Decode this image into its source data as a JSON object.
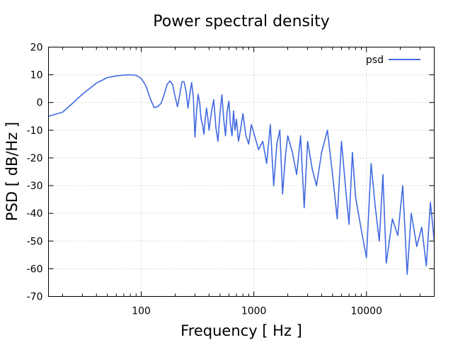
{
  "chart_data": {
    "type": "line",
    "title": "Power spectral density",
    "xlabel": "Frequency [ Hz ]",
    "ylabel": "PSD [ dB/Hz ]",
    "xscale": "log",
    "xlim": [
      15,
      40000
    ],
    "ylim": [
      -70,
      20
    ],
    "x_ticks": [
      100,
      1000,
      10000
    ],
    "x_tick_labels": [
      "100",
      "1000",
      "10000"
    ],
    "y_ticks": [
      -70,
      -60,
      -50,
      -40,
      -30,
      -20,
      -10,
      0,
      10,
      20
    ],
    "y_tick_labels": [
      "-70",
      "-60",
      "-50",
      "-40",
      "-30",
      "-20",
      "-10",
      "0",
      "10",
      "20"
    ],
    "grid": true,
    "legend_position": "top-right",
    "series": [
      {
        "name": "psd",
        "color": "#4169e1",
        "x": [
          15,
          20,
          25,
          30,
          40,
          50,
          60,
          70,
          80,
          90,
          100,
          110,
          120,
          130,
          140,
          150,
          160,
          170,
          180,
          190,
          200,
          210,
          220,
          230,
          240,
          250,
          260,
          270,
          280,
          290,
          300,
          310,
          320,
          330,
          340,
          350,
          360,
          370,
          380,
          390,
          400,
          420,
          440,
          460,
          480,
          500,
          520,
          540,
          560,
          580,
          600,
          620,
          640,
          660,
          680,
          700,
          730,
          760,
          800,
          850,
          900,
          950,
          1000,
          1100,
          1200,
          1300,
          1400,
          1500,
          1600,
          1700,
          1800,
          1900,
          2000,
          2200,
          2400,
          2600,
          2800,
          3000,
          3300,
          3600,
          4000,
          4500,
          5000,
          5500,
          6000,
          6500,
          7000,
          7500,
          8000,
          9000,
          10000,
          11000,
          12000,
          13000,
          14000,
          15000,
          17000,
          19000,
          21000,
          23000,
          25000,
          28000,
          31000,
          34000,
          37000,
          40000
        ],
        "values": [
          -5,
          -3.5,
          0,
          3,
          7,
          9,
          9.6,
          9.9,
          10,
          9.8,
          8.7,
          6,
          1.5,
          -1.8,
          -1.5,
          -0.3,
          3,
          6.6,
          7.8,
          6.5,
          2,
          -1.5,
          3,
          7.5,
          7.5,
          4,
          -2,
          3,
          7.2,
          2,
          -12.5,
          -3,
          3,
          0,
          -6,
          -8,
          -11.5,
          -6,
          -2,
          -5.5,
          -10,
          -3.5,
          1,
          -9,
          -14,
          -4,
          2.8,
          -6,
          -12,
          -3,
          0.5,
          -8,
          -12,
          -3,
          -10,
          -6,
          -14,
          -10,
          -4,
          -12,
          -15,
          -8,
          -11,
          -17,
          -14,
          -22,
          -8,
          -30,
          -15,
          -10,
          -33,
          -20,
          -12,
          -18,
          -26,
          -12,
          -38,
          -14,
          -24,
          -30,
          -18,
          -10,
          -26,
          -42,
          -14,
          -30,
          -44,
          -18,
          -34,
          -46,
          -56,
          -22,
          -38,
          -50,
          -26,
          -58,
          -42,
          -48,
          -30,
          -62,
          -40,
          -52,
          -45,
          -59,
          -36,
          -50
        ]
      }
    ]
  }
}
